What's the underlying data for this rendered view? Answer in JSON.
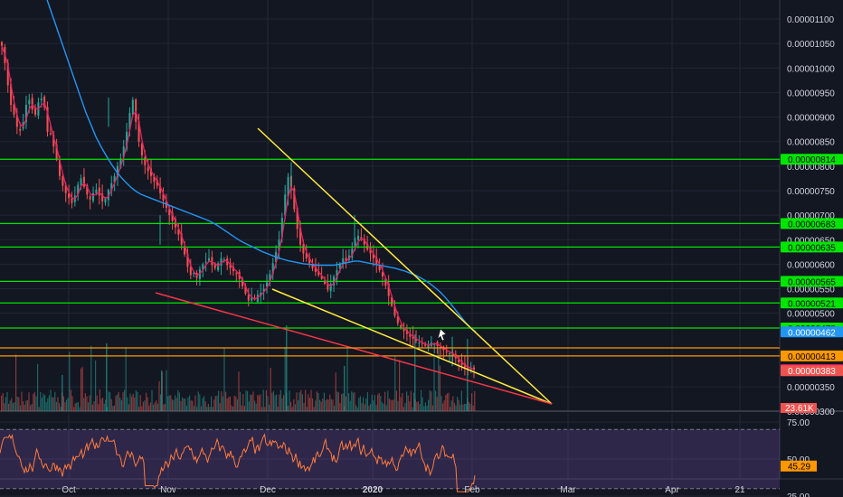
{
  "colors": {
    "background": "#131722",
    "grid": "#232735",
    "separator": "#363a45",
    "candle_up": "#26a69a",
    "candle_down": "#ef5350",
    "ma_price": "#e91e63",
    "ma_slow": "#2196f3",
    "support_resist": "#00e600",
    "wedge": "#ffeb3b",
    "wedge_lower": "#f23645",
    "resistance_orange": "#ff9800",
    "rsi_line": "#ff7a3d",
    "rsi_band": "rgba(126,87,194,0.25)"
  },
  "chart_data": {
    "type": "candlestick",
    "price_axis": {
      "ticks": [
        "0.00001100",
        "0.00001050",
        "0.00001000",
        "0.00000950",
        "0.00000900",
        "0.00000850",
        "0.00000800",
        "0.00000750",
        "0.00000700",
        "0.00000650",
        "0.00000600",
        "0.00000550",
        "0.00000500",
        "0.00000350",
        "0.00000300"
      ],
      "tick_values": [
        1100,
        1050,
        1000,
        950,
        900,
        850,
        800,
        750,
        700,
        650,
        600,
        550,
        500,
        350,
        300
      ]
    },
    "price_unit_scale": 1e-08,
    "horizontal_levels": [
      {
        "label": "0.00000814",
        "value": 814,
        "color": "#00e600"
      },
      {
        "label": "0.00000683",
        "value": 683,
        "color": "#00e600"
      },
      {
        "label": "0.00000635",
        "value": 635,
        "color": "#00e600"
      },
      {
        "label": "0.00000565",
        "value": 565,
        "color": "#00e600"
      },
      {
        "label": "0.00000521",
        "value": 521,
        "color": "#00e600"
      },
      {
        "label": "0.00000470",
        "value": 470,
        "color": "#00e600"
      },
      {
        "label": "0.00000413",
        "value": 413,
        "color": "#ff9800"
      }
    ],
    "price_badges": [
      {
        "label": "0.00000462",
        "value": 462,
        "bg": "#2196f3"
      },
      {
        "label": "0.00000385",
        "value": 385,
        "bg": "#e91e63"
      },
      {
        "label": "0.00000383",
        "value": 383,
        "bg": "#ef5350"
      }
    ],
    "volume_badge": "23.61K",
    "time_axis": [
      "Oct",
      "Nov",
      "Dec",
      "2020",
      "Feb",
      "Mar",
      "Apr",
      "21"
    ],
    "rsi": {
      "ticks": [
        "75.00",
        "50.00",
        "25.00"
      ],
      "tick_values": [
        75,
        50,
        25
      ],
      "upper": 70,
      "lower": 30,
      "current": "45.29"
    },
    "close_series": [
      1045,
      1010,
      965,
      925,
      905,
      880,
      872,
      890,
      925,
      935,
      915,
      905,
      930,
      938,
      920,
      870,
      865,
      840,
      815,
      780,
      760,
      745,
      735,
      725,
      740,
      762,
      775,
      758,
      742,
      732,
      745,
      752,
      740,
      728,
      735,
      752,
      765,
      780,
      800,
      815,
      840,
      870,
      908,
      935,
      890,
      850,
      822,
      802,
      790,
      780,
      768,
      760,
      745,
      730,
      715,
      700,
      688,
      675,
      660,
      640,
      620,
      595,
      578,
      582,
      572,
      590,
      600,
      605,
      612,
      598,
      592,
      602,
      612,
      610,
      598,
      592,
      586,
      580,
      570,
      555,
      540,
      526,
      532,
      528,
      538,
      542,
      550,
      563,
      580,
      602,
      625,
      650,
      695,
      742,
      778,
      752,
      712,
      672,
      640,
      622,
      612,
      602,
      592,
      584,
      578,
      570,
      560,
      548,
      560,
      575,
      588,
      600,
      612,
      606,
      618,
      632,
      648,
      658,
      650,
      640,
      630,
      622,
      612,
      600,
      588,
      575,
      556,
      535,
      515,
      495,
      480,
      470,
      464,
      458,
      452,
      448,
      444,
      440,
      438,
      434,
      436,
      440,
      438,
      433,
      429,
      425,
      422,
      418,
      414,
      408,
      400,
      394,
      390,
      388,
      386,
      385
    ],
    "ma_slow_series": [
      1150,
      1120,
      1090,
      1060,
      1030,
      1000,
      970,
      940,
      910,
      885,
      860,
      840,
      822,
      805,
      790,
      777,
      766,
      756,
      748,
      742,
      738,
      734,
      730,
      726,
      722,
      718,
      714,
      710,
      706,
      702,
      698,
      694,
      690,
      685,
      679,
      672,
      665,
      658,
      651,
      645,
      640,
      635,
      630,
      625,
      621,
      617,
      613,
      610,
      607,
      605,
      603,
      601,
      600,
      599,
      598,
      598,
      598,
      598,
      600,
      602,
      604,
      606,
      606,
      604,
      602,
      600,
      598,
      596,
      594,
      592,
      589,
      586,
      582,
      578,
      573,
      567,
      560,
      552,
      543,
      532,
      520,
      507,
      494,
      481,
      470,
      462
    ]
  }
}
